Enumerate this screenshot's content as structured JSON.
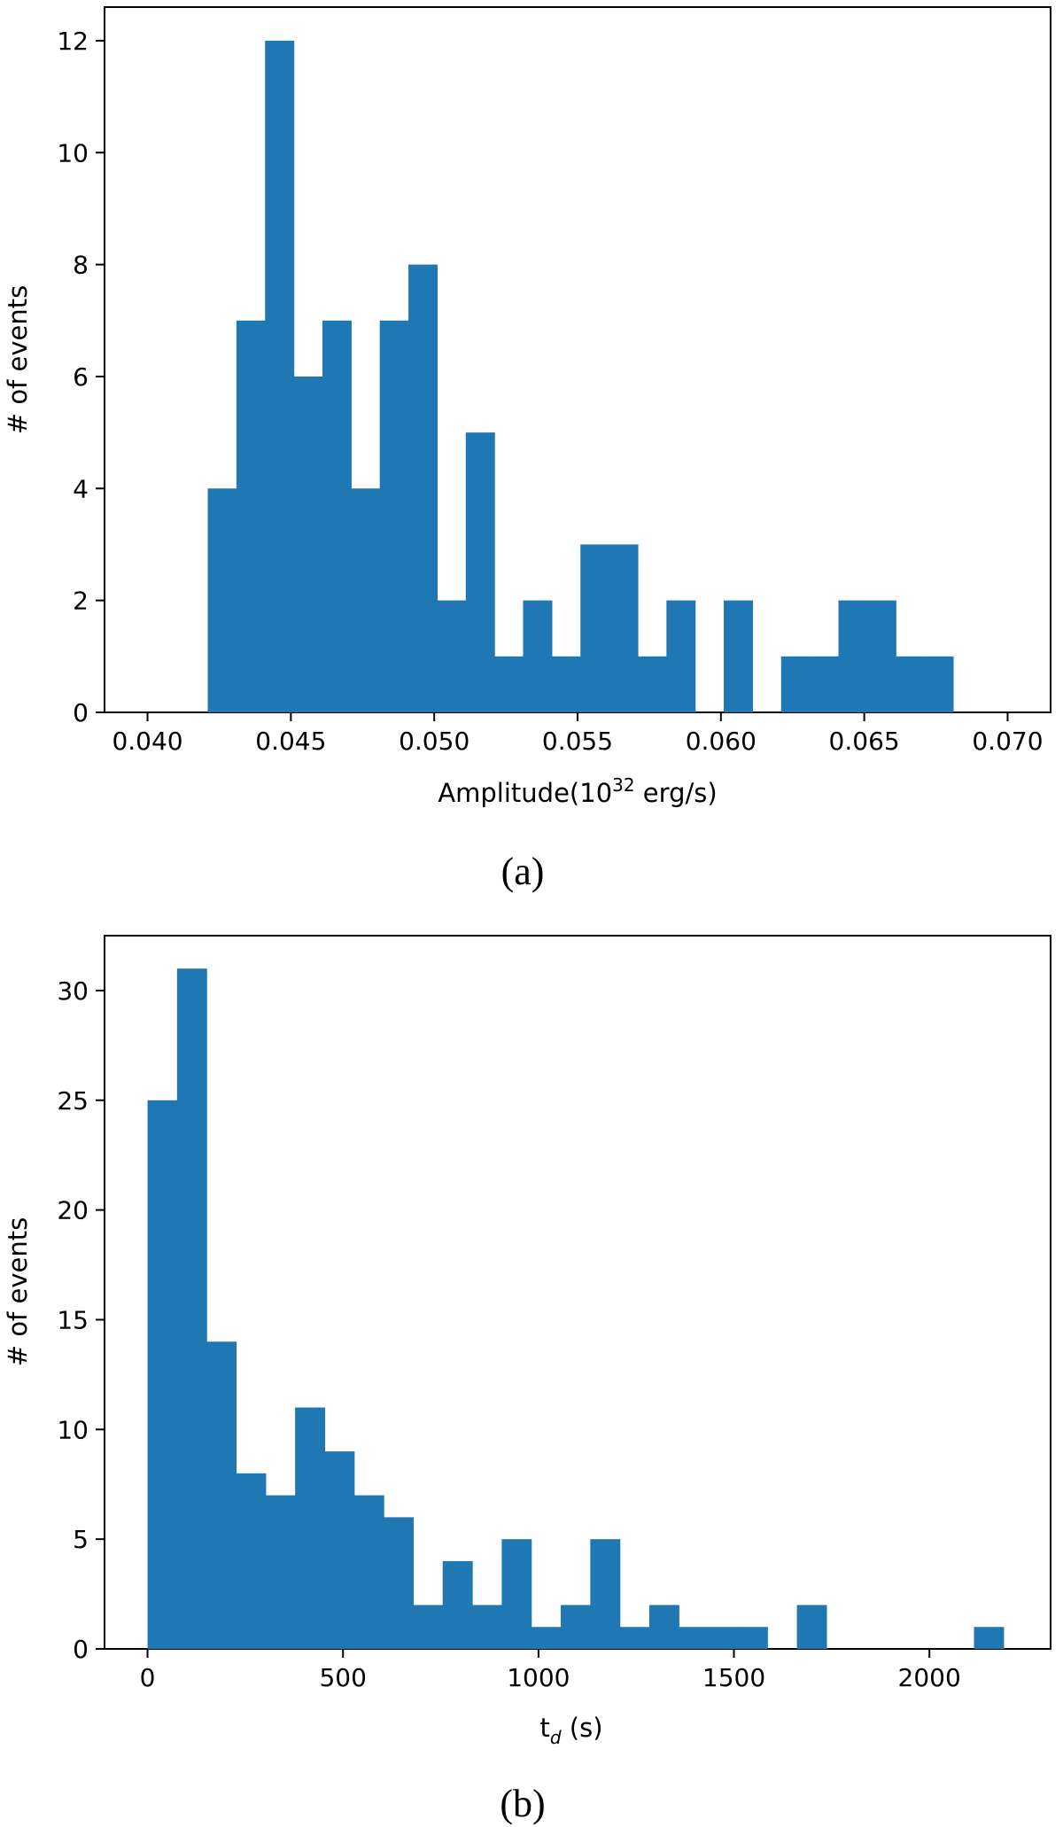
{
  "chart_data": [
    {
      "id": "a",
      "type": "bar",
      "histogram": true,
      "caption": "(a)",
      "xlabel_main": "Amplitude(10",
      "xlabel_sup": "32",
      "xlabel_tail": " erg/s)",
      "ylabel": "# of events",
      "xlim": [
        0.0385,
        0.0715
      ],
      "ylim": [
        0,
        12.6
      ],
      "xticks": [
        "0.040",
        "0.045",
        "0.050",
        "0.055",
        "0.060",
        "0.065",
        "0.070"
      ],
      "xtick_values": [
        0.04,
        0.045,
        0.05,
        0.055,
        0.06,
        0.065,
        0.07
      ],
      "yticks": [
        "0",
        "2",
        "4",
        "6",
        "8",
        "10",
        "12"
      ],
      "ytick_values": [
        0,
        2,
        4,
        6,
        8,
        10,
        12
      ],
      "bin_start": 0.0421,
      "bin_width": 0.001,
      "values": [
        4,
        7,
        12,
        6,
        7,
        4,
        7,
        8,
        2,
        5,
        1,
        2,
        1,
        3,
        3,
        1,
        2,
        0,
        2,
        0,
        1,
        1,
        2,
        2,
        1,
        1
      ],
      "color": "#1f77b4"
    },
    {
      "id": "b",
      "type": "bar",
      "histogram": true,
      "caption": "(b)",
      "xlabel_main": "t",
      "xlabel_sub": "d",
      "xlabel_tail": " (s)",
      "ylabel": "# of events",
      "xlim": [
        -110,
        2310
      ],
      "ylim": [
        0,
        32.5
      ],
      "xticks": [
        "0",
        "500",
        "1000",
        "1500",
        "2000"
      ],
      "xtick_values": [
        0,
        500,
        1000,
        1500,
        2000
      ],
      "yticks": [
        "0",
        "5",
        "10",
        "15",
        "20",
        "25",
        "30"
      ],
      "ytick_values": [
        0,
        5,
        10,
        15,
        20,
        25,
        30
      ],
      "bin_start": 0,
      "bin_width": 75.5,
      "values": [
        25,
        31,
        14,
        8,
        7,
        11,
        9,
        7,
        6,
        2,
        4,
        2,
        5,
        1,
        2,
        5,
        1,
        2,
        1,
        1,
        1,
        0,
        2,
        0,
        0,
        0,
        0,
        0,
        1
      ],
      "color": "#1f77b4"
    }
  ]
}
